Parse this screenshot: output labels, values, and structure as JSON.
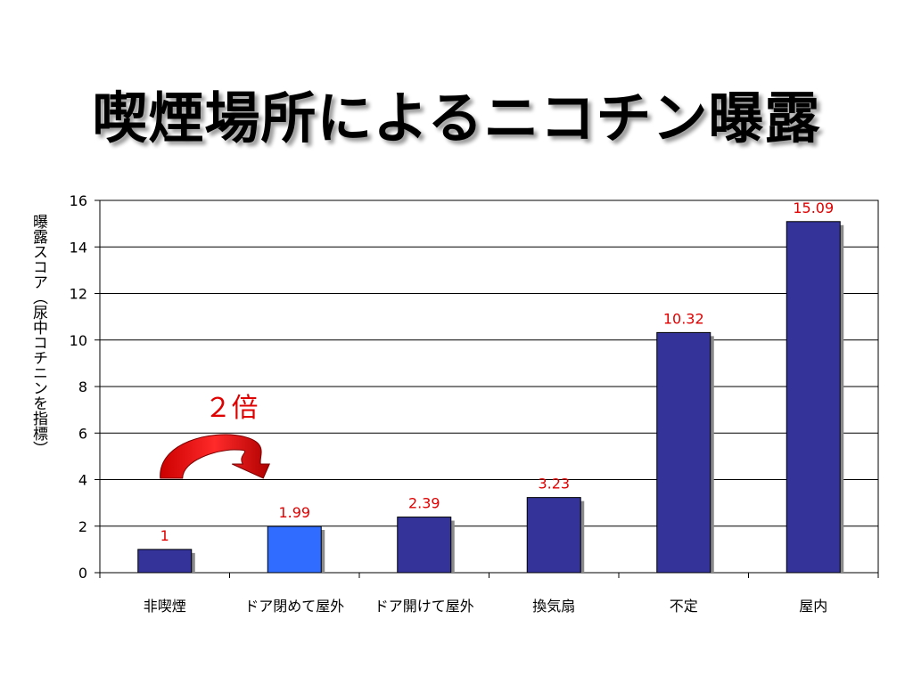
{
  "slide": {
    "title": "喫煙場所によるニコチン曝露"
  },
  "colors": {
    "bar": "#333399",
    "highlight_bar": "#2f6cff",
    "data_label": "#e00000",
    "arrow": "#cc0000"
  },
  "chart_data": {
    "type": "bar",
    "title": "喫煙場所によるニコチン曝露",
    "xlabel": "",
    "ylabel": "曝露スコア（尿中コチニンを指標）",
    "categories": [
      "非喫煙",
      "ドア閉めて屋外",
      "ドア開けて屋外",
      "換気扇",
      "不定",
      "屋内"
    ],
    "values": [
      1,
      1.99,
      2.39,
      3.23,
      10.32,
      15.09
    ],
    "data_labels": [
      "1",
      "1.99",
      "2.39",
      "3.23",
      "10.32",
      "15.09"
    ],
    "highlight_index": 1,
    "ylim": [
      0,
      16
    ],
    "yticks": [
      0,
      2,
      4,
      6,
      8,
      10,
      12,
      14,
      16
    ],
    "grid": true,
    "legend": "none",
    "annotation": {
      "text": "２倍",
      "from_category": "非喫煙",
      "to_category": "ドア閉めて屋外"
    }
  }
}
